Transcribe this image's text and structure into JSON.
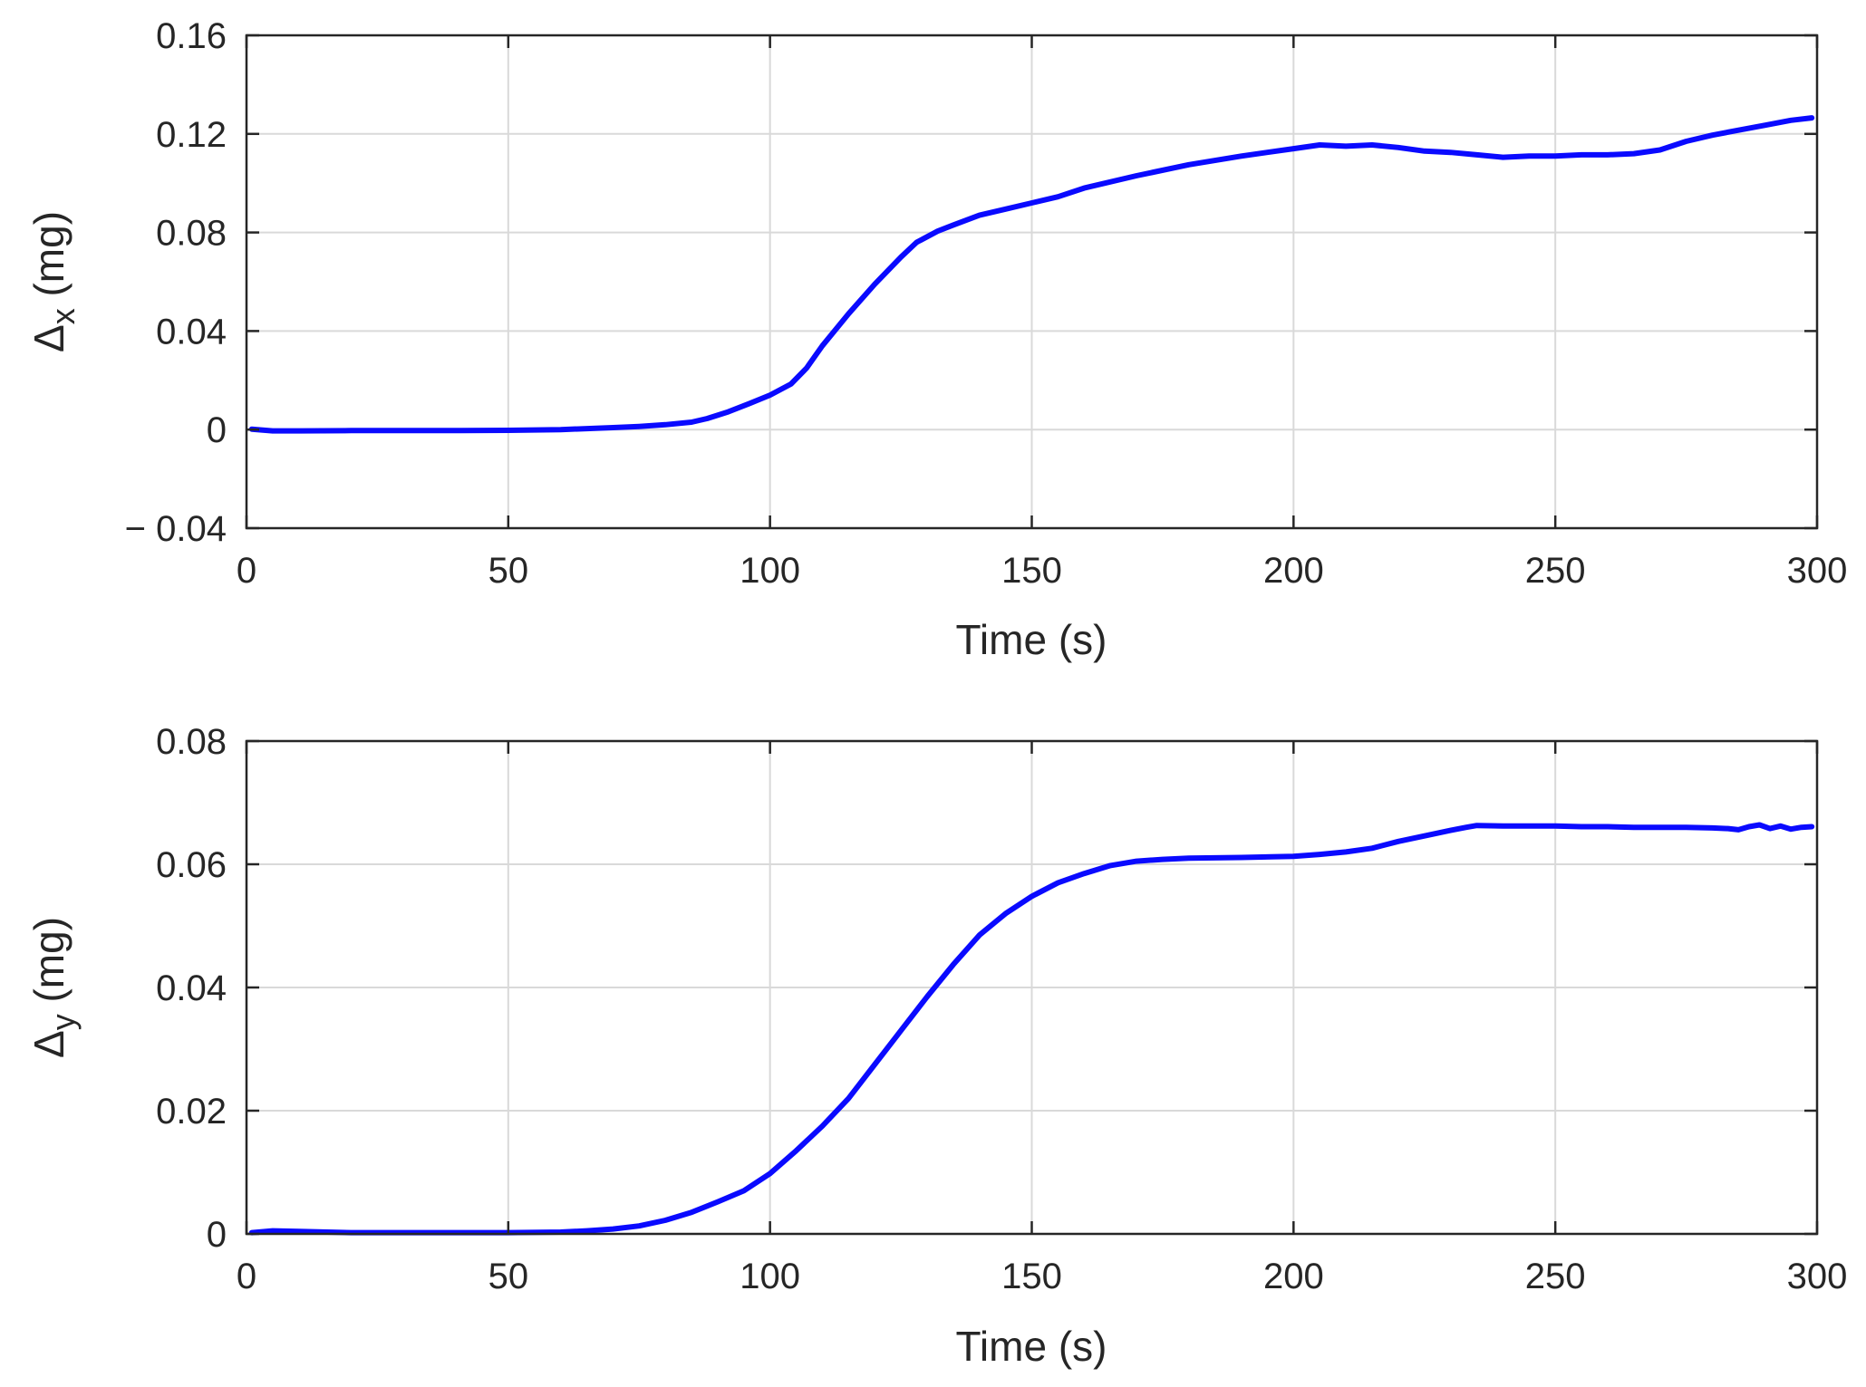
{
  "colors": {
    "series": "#0a0aff",
    "grid": "#d9d9d9",
    "axes": "#262626"
  },
  "chart_data": [
    {
      "type": "line",
      "xlabel": "Time (s)",
      "ylabel_symbol": "Δ",
      "ylabel_subscript": "x",
      "ylabel_unit": " (mg)",
      "xlim": [
        0,
        300
      ],
      "ylim": [
        -0.04,
        0.16
      ],
      "xticks": [
        0,
        50,
        100,
        150,
        200,
        250,
        300
      ],
      "xtick_labels": [
        "0",
        "50",
        "100",
        "150",
        "200",
        "250",
        "300"
      ],
      "yticks": [
        -0.04,
        0,
        0.04,
        0.08,
        0.12,
        0.16
      ],
      "ytick_labels": [
        "− 0.04",
        "0",
        "0.04",
        "0.08",
        "0.12",
        "0.16"
      ],
      "grid": true,
      "series": [
        {
          "x": [
            1,
            5,
            10,
            20,
            30,
            40,
            50,
            60,
            70,
            75,
            80,
            85,
            88,
            92,
            96,
            100,
            104,
            107,
            110,
            115,
            120,
            125,
            128,
            132,
            135,
            140,
            145,
            150,
            155,
            160,
            170,
            180,
            190,
            200,
            205,
            210,
            215,
            220,
            225,
            230,
            235,
            240,
            245,
            250,
            255,
            260,
            265,
            270,
            275,
            280,
            285,
            290,
            295,
            299
          ],
          "y": [
            0.0002,
            -0.0005,
            -0.0005,
            -0.0004,
            -0.0004,
            -0.0004,
            -0.0003,
            0.0,
            0.0008,
            0.0013,
            0.002,
            0.003,
            0.0045,
            0.0072,
            0.0105,
            0.014,
            0.0185,
            0.025,
            0.034,
            0.047,
            0.059,
            0.07,
            0.076,
            0.0805,
            0.083,
            0.087,
            0.0895,
            0.092,
            0.0945,
            0.098,
            0.103,
            0.1075,
            0.111,
            0.114,
            0.1155,
            0.115,
            0.1155,
            0.1145,
            0.113,
            0.1125,
            0.1115,
            0.1105,
            0.111,
            0.111,
            0.1115,
            0.1115,
            0.112,
            0.1135,
            0.117,
            0.1195,
            0.1215,
            0.1235,
            0.1255,
            0.1265
          ]
        }
      ]
    },
    {
      "type": "line",
      "xlabel": "Time (s)",
      "ylabel_symbol": "Δ",
      "ylabel_subscript": "y",
      "ylabel_unit": " (mg)",
      "xlim": [
        0,
        300
      ],
      "ylim": [
        0,
        0.08
      ],
      "xticks": [
        0,
        50,
        100,
        150,
        200,
        250,
        300
      ],
      "xtick_labels": [
        "0",
        "50",
        "100",
        "150",
        "200",
        "250",
        "300"
      ],
      "yticks": [
        0,
        0.02,
        0.04,
        0.06,
        0.08
      ],
      "ytick_labels": [
        "0",
        "0.02",
        "0.04",
        "0.06",
        "0.08"
      ],
      "grid": true,
      "series": [
        {
          "x": [
            1,
            5,
            10,
            20,
            30,
            40,
            50,
            60,
            65,
            70,
            75,
            80,
            85,
            90,
            95,
            100,
            105,
            110,
            115,
            120,
            125,
            130,
            135,
            140,
            145,
            150,
            155,
            160,
            165,
            170,
            175,
            180,
            190,
            200,
            205,
            210,
            215,
            220,
            225,
            230,
            233,
            235,
            240,
            245,
            250,
            255,
            260,
            265,
            270,
            275,
            280,
            283,
            285,
            287,
            289,
            291,
            293,
            295,
            297,
            299
          ],
          "y": [
            0.0002,
            0.0005,
            0.0004,
            0.0002,
            0.0002,
            0.0002,
            0.0002,
            0.0003,
            0.0005,
            0.0008,
            0.0013,
            0.0022,
            0.0035,
            0.0052,
            0.007,
            0.0098,
            0.0135,
            0.0175,
            0.022,
            0.0275,
            0.033,
            0.0385,
            0.0437,
            0.0485,
            0.052,
            0.0548,
            0.057,
            0.0585,
            0.0598,
            0.0605,
            0.0608,
            0.061,
            0.0611,
            0.0613,
            0.0616,
            0.062,
            0.0626,
            0.0637,
            0.0646,
            0.0655,
            0.066,
            0.0663,
            0.0662,
            0.0662,
            0.0662,
            0.0661,
            0.0661,
            0.066,
            0.066,
            0.066,
            0.0659,
            0.0658,
            0.0656,
            0.0661,
            0.0664,
            0.0658,
            0.0662,
            0.0657,
            0.066,
            0.0661
          ]
        }
      ]
    }
  ]
}
